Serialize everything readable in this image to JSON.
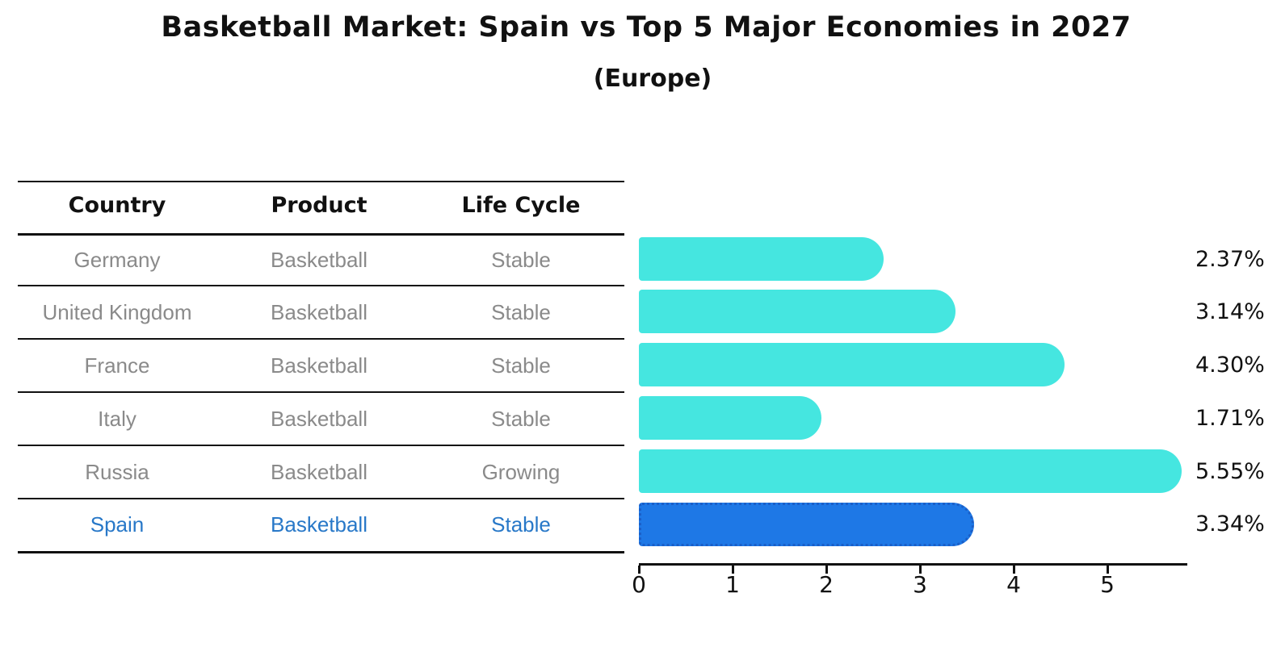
{
  "title": "Basketball Market: Spain vs Top 5 Major Economies in 2027",
  "subtitle": "(Europe)",
  "table": {
    "headers": [
      "Country",
      "Product",
      "Life Cycle"
    ],
    "rows": [
      {
        "country": "Germany",
        "product": "Basketball",
        "life_cycle": "Stable",
        "highlight": false
      },
      {
        "country": "United Kingdom",
        "product": "Basketball",
        "life_cycle": "Stable",
        "highlight": false
      },
      {
        "country": "France",
        "product": "Basketball",
        "life_cycle": "Stable",
        "highlight": false
      },
      {
        "country": "Italy",
        "product": "Basketball",
        "life_cycle": "Stable",
        "highlight": false
      },
      {
        "country": "Russia",
        "product": "Basketball",
        "life_cycle": "Growing",
        "highlight": false
      },
      {
        "country": "Spain",
        "product": "Basketball",
        "life_cycle": "Stable",
        "highlight": true
      }
    ]
  },
  "chart_data": {
    "type": "bar",
    "orientation": "horizontal",
    "title": "Basketball Market: Spain vs Top 5 Major Economies in 2027",
    "subtitle": "(Europe)",
    "categories": [
      "Germany",
      "United Kingdom",
      "France",
      "Italy",
      "Russia",
      "Spain"
    ],
    "values": [
      2.37,
      3.14,
      4.3,
      1.71,
      5.55,
      3.34
    ],
    "value_labels": [
      "2.37%",
      "3.14%",
      "4.30%",
      "1.71%",
      "5.55%",
      "3.34%"
    ],
    "highlighted_category": "Spain",
    "x_ticks": [
      0,
      1,
      2,
      3,
      4,
      5
    ],
    "x_tick_labels": [
      "0",
      "1",
      "2",
      "3",
      "4",
      "5"
    ],
    "xlim": [
      0,
      5.85
    ],
    "grid": false,
    "legend": false
  },
  "colors": {
    "bar": "#45E6E0",
    "highlight_bar": "#1E78E6",
    "highlight_bar_border": "#1A5FC8",
    "row_text": "#8a8a8a",
    "highlight_text": "#2878C8",
    "line": "#111111"
  }
}
